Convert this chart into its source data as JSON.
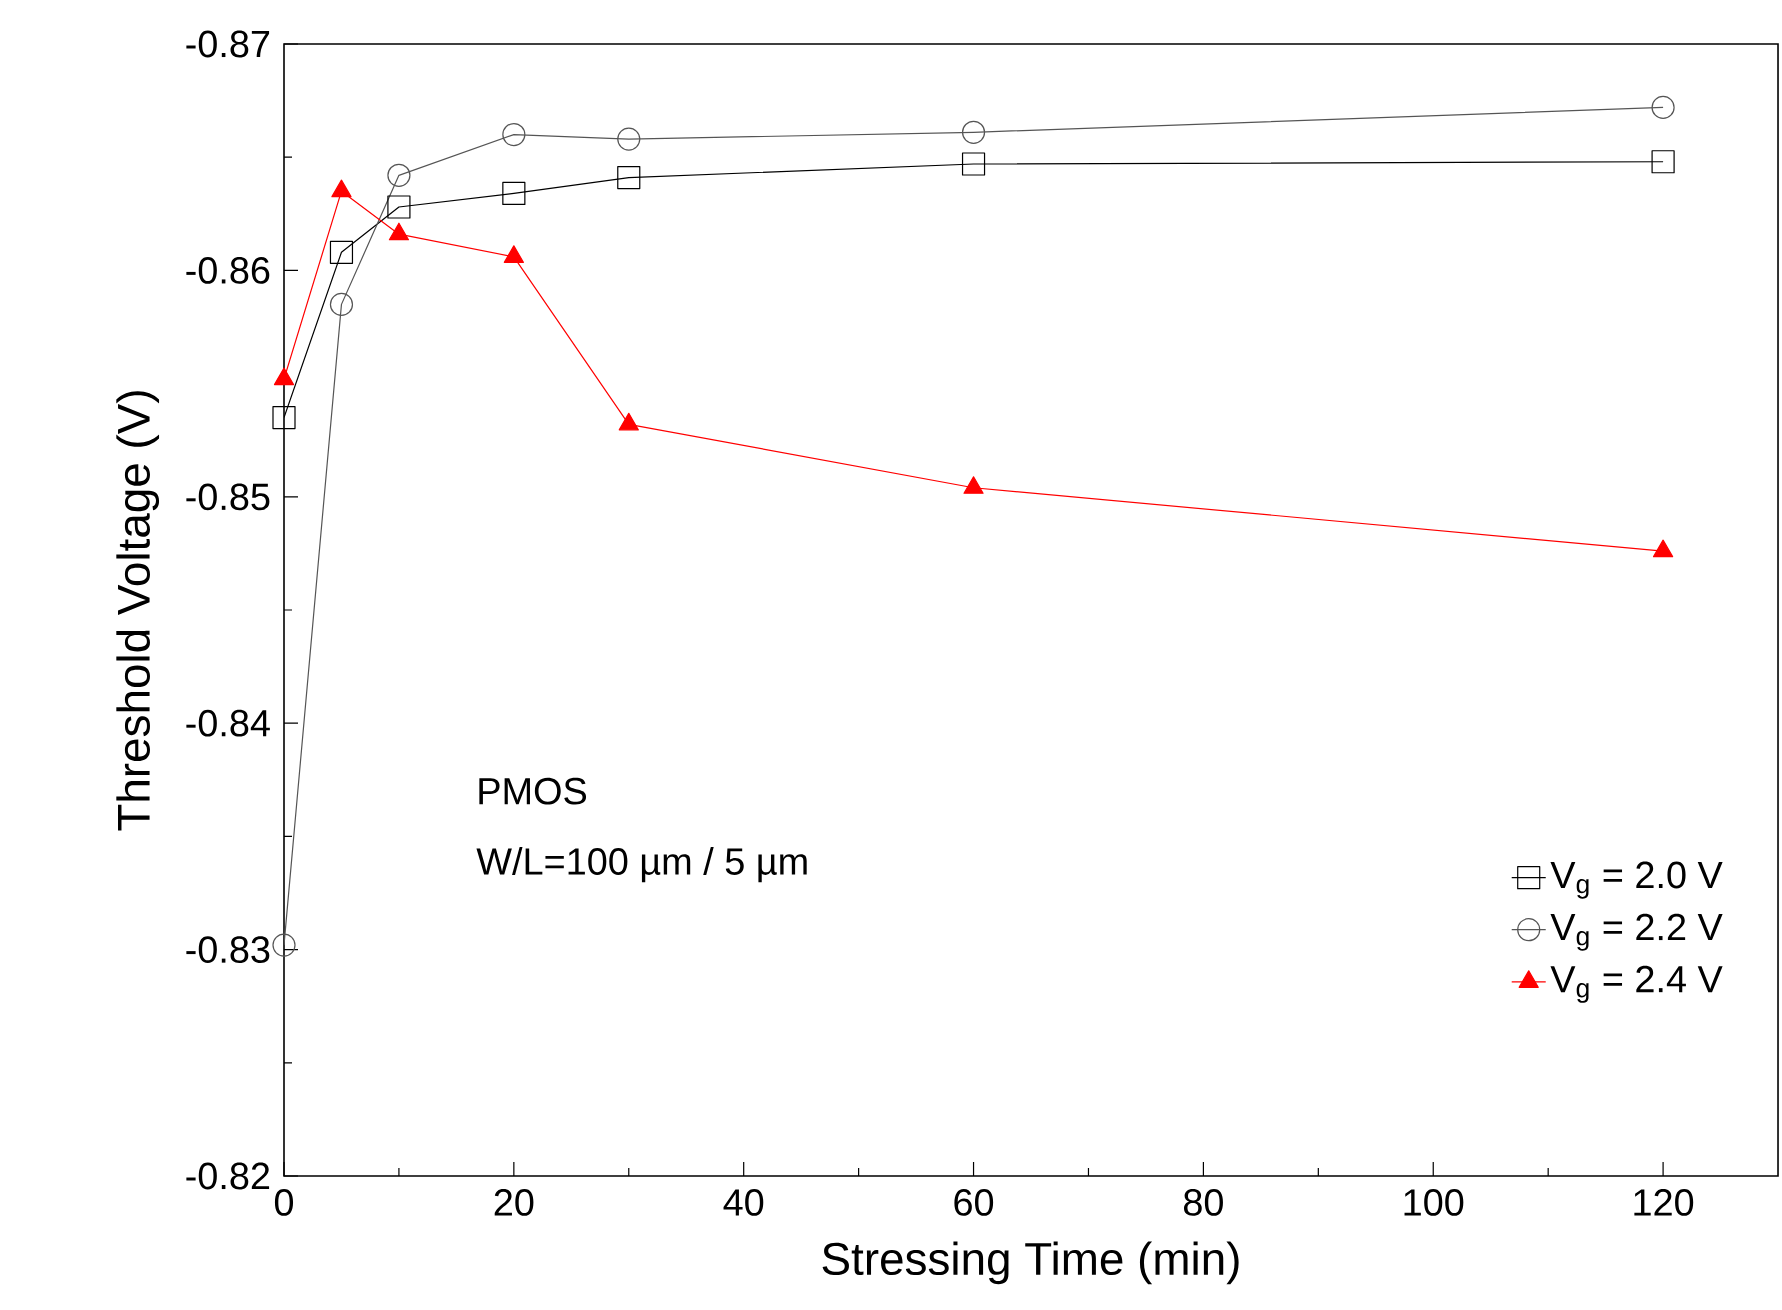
{
  "chart_data": {
    "type": "line",
    "xlabel": "Stressing Time (min)",
    "ylabel": "Threshold Voltage (V)",
    "x": [
      0,
      5,
      10,
      20,
      30,
      60,
      120
    ],
    "xlim": [
      0,
      130
    ],
    "xticks": [
      0,
      20,
      40,
      60,
      80,
      100,
      120
    ],
    "ylim": [
      -0.82,
      -0.87
    ],
    "yticks": [
      -0.87,
      -0.86,
      -0.85,
      -0.84,
      -0.83,
      -0.82
    ],
    "series": [
      {
        "name": "V$_{g}$ = 2.0 V",
        "color": "#000000",
        "marker": "square",
        "values": [
          -0.8535,
          -0.8608,
          -0.8628,
          -0.8634,
          -0.8641,
          -0.8647,
          -0.8648
        ]
      },
      {
        "name": "V$_{g}$ = 2.2 V",
        "color": "#555555",
        "marker": "circle",
        "values": [
          -0.8302,
          -0.8585,
          -0.8642,
          -0.866,
          -0.8658,
          -0.8661,
          -0.8672
        ]
      },
      {
        "name": "V$_{g}$ = 2.4 V",
        "color": "#ff0000",
        "marker": "triangle",
        "values": [
          -0.8552,
          -0.8635,
          -0.8616,
          -0.8606,
          -0.8532,
          -0.8504,
          -0.8476
        ]
      }
    ],
    "legend": "bottom right",
    "grid": false,
    "annotations": [
      "PMOS",
      "W/L=100 µm / 5 µm"
    ]
  }
}
